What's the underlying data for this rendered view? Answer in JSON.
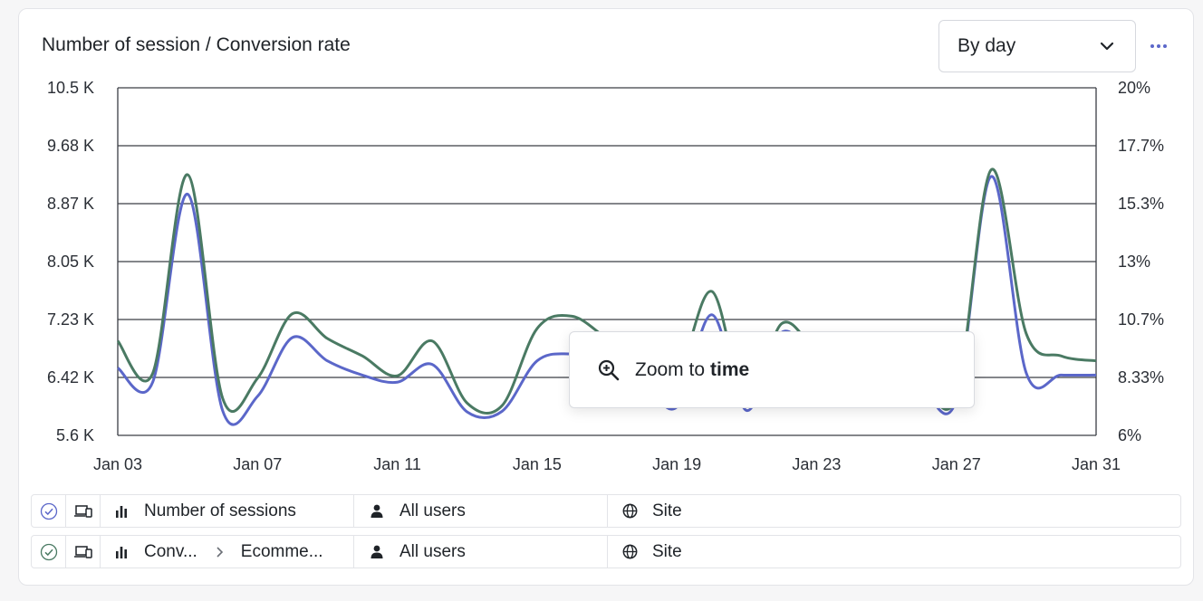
{
  "card": {
    "title": "Number of session / Conversion rate",
    "period_select": "By day",
    "more_icon": "ellipsis-icon"
  },
  "tooltip": {
    "icon": "zoom-in-icon",
    "text_prefix": "Zoom to",
    "text_bold": "time"
  },
  "segments": [
    {
      "status_icon": "check-circle-icon",
      "device_icon": "devices-icon",
      "metric_icon": "bar-chart-icon",
      "metric": "Number of sessions",
      "metric_sub": "",
      "audience": "All users",
      "scope": "Site"
    },
    {
      "status_icon": "check-circle-icon",
      "device_icon": "devices-icon",
      "metric_icon": "bar-chart-icon",
      "metric": "Conv...",
      "metric_sub": "Ecomme...",
      "audience": "All users",
      "scope": "Site"
    }
  ],
  "colors": {
    "sessions": "#5b67c9",
    "conversion": "#4a7a63",
    "grid": "#3a3d44"
  },
  "chart_data": {
    "type": "line",
    "title": "Number of session / Conversion rate",
    "x_tick_labels": [
      "Jan 03",
      "Jan 07",
      "Jan 11",
      "Jan 15",
      "Jan 19",
      "Jan 23",
      "Jan 27",
      "Jan 31"
    ],
    "y_left_ticks": [
      "10.5 K",
      "9.68 K",
      "8.87 K",
      "8.05 K",
      "7.23 K",
      "6.42 K",
      "5.6 K"
    ],
    "y_right_ticks": [
      "20%",
      "17.7%",
      "15.3%",
      "13%",
      "10.7%",
      "8.33%",
      "6%"
    ],
    "y_left_range": [
      5600,
      10500
    ],
    "y_right_range": [
      6,
      20
    ],
    "grid": true,
    "x": [
      "Jan 03",
      "Jan 04",
      "Jan 05",
      "Jan 06",
      "Jan 07",
      "Jan 08",
      "Jan 09",
      "Jan 10",
      "Jan 11",
      "Jan 12",
      "Jan 13",
      "Jan 14",
      "Jan 15",
      "Jan 16",
      "Jan 17",
      "Jan 18",
      "Jan 19",
      "Jan 20",
      "Jan 21",
      "Jan 22",
      "Jan 23",
      "Jan 24",
      "Jan 25",
      "Jan 26",
      "Jan 27",
      "Jan 28",
      "Jan 29",
      "Jan 30",
      "Jan 31"
    ],
    "series": [
      {
        "key": "sessions",
        "axis": "left",
        "values": [
          6550,
          6350,
          9000,
          5950,
          6150,
          6980,
          6650,
          6450,
          6350,
          6600,
          5930,
          5940,
          6650,
          6750,
          6700,
          6400,
          6000,
          7300,
          5950,
          7050,
          6650,
          6450,
          6400,
          6250,
          6100,
          9250,
          6480,
          6450,
          6450
        ]
      },
      {
        "key": "conversion",
        "axis": "right",
        "values": [
          9.8,
          8.5,
          16.5,
          7.5,
          8.3,
          10.9,
          9.9,
          9.2,
          8.4,
          9.8,
          7.3,
          7.2,
          10.3,
          10.8,
          9.9,
          9.0,
          8.4,
          11.8,
          7.3,
          10.5,
          9.4,
          8.8,
          8.6,
          8.1,
          7.6,
          16.7,
          10.1,
          9.2,
          9.0
        ]
      }
    ]
  }
}
